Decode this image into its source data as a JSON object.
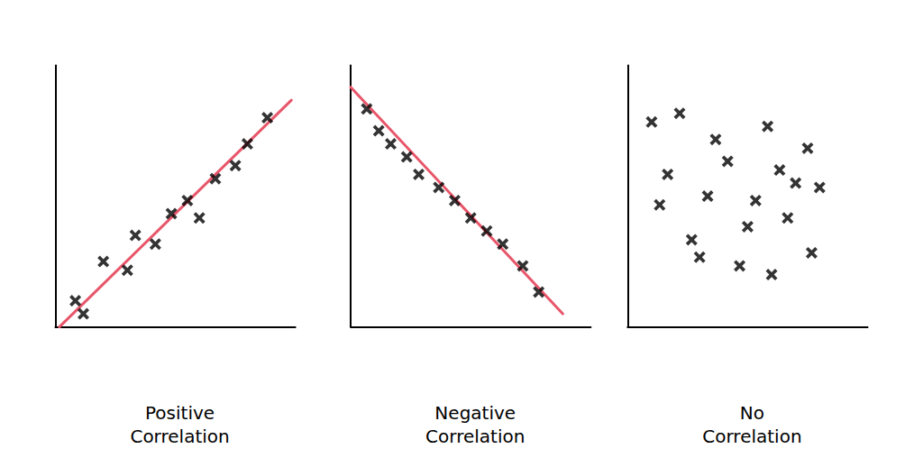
{
  "chart_data": [
    {
      "type": "scatter",
      "title": "Positive\nCorrelation",
      "xlim": [
        0,
        6.0
      ],
      "ylim": [
        0,
        6.0
      ],
      "xticks": [],
      "yticks": [],
      "tick_labels": false,
      "grid": false,
      "series": [
        {
          "type": "scatter",
          "marker": "x",
          "color": "#000000",
          "x": [
            0.5,
            0.7,
            1.2,
            1.8,
            2.0,
            2.5,
            2.9,
            3.3,
            3.6,
            4.0,
            4.5,
            4.8,
            5.3
          ],
          "values": [
            0.6,
            0.3,
            1.5,
            1.3,
            2.1,
            1.9,
            2.6,
            2.9,
            2.5,
            3.4,
            3.7,
            4.2,
            4.8
          ]
        },
        {
          "type": "line",
          "color": "#e8566a",
          "x": [
            0.1,
            5.9
          ],
          "values": [
            0.0,
            5.2
          ]
        }
      ]
    },
    {
      "type": "scatter",
      "title": "Negative\nCorrelation",
      "xlim": [
        0,
        6.0
      ],
      "ylim": [
        0,
        6.0
      ],
      "xticks": [],
      "yticks": [],
      "tick_labels": false,
      "grid": false,
      "series": [
        {
          "type": "scatter",
          "marker": "x",
          "color": "#000000",
          "x": [
            0.4,
            0.7,
            1.0,
            1.4,
            1.7,
            2.2,
            2.6,
            3.0,
            3.4,
            3.8,
            4.3,
            4.7
          ],
          "values": [
            5.0,
            4.5,
            4.2,
            3.9,
            3.5,
            3.2,
            2.9,
            2.5,
            2.2,
            1.9,
            1.4,
            0.8
          ]
        },
        {
          "type": "line",
          "color": "#e8566a",
          "x": [
            0.0,
            5.3
          ],
          "values": [
            5.5,
            0.3
          ]
        }
      ]
    },
    {
      "type": "scatter",
      "title": "No\nCorrelation",
      "xlim": [
        0,
        6.0
      ],
      "ylim": [
        0,
        6.0
      ],
      "xticks": [],
      "yticks": [],
      "tick_labels": false,
      "grid": false,
      "series": [
        {
          "type": "scatter",
          "marker": "x",
          "color": "#000000",
          "x": [
            0.6,
            1.3,
            2.2,
            3.5,
            4.5,
            1.0,
            2.5,
            3.8,
            4.8,
            0.8,
            2.0,
            3.2,
            4.2,
            1.6,
            3.0,
            4.0,
            2.8,
            1.8,
            3.6,
            4.6
          ],
          "values": [
            4.7,
            4.9,
            4.3,
            4.6,
            4.1,
            3.5,
            3.8,
            3.6,
            3.2,
            2.8,
            3.0,
            2.9,
            3.3,
            2.0,
            2.3,
            2.5,
            1.4,
            1.6,
            1.2,
            1.7
          ]
        }
      ]
    }
  ]
}
